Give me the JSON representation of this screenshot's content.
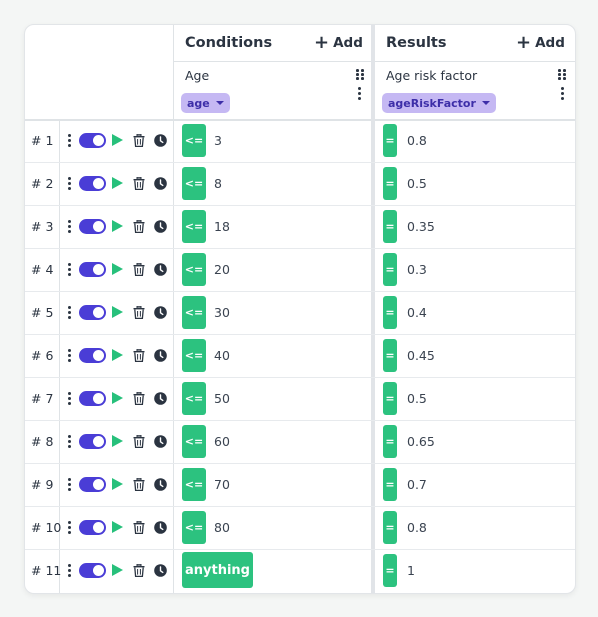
{
  "conditions": {
    "title": "Conditions",
    "add_label": "Add",
    "column": {
      "label": "Age",
      "variable": "age"
    }
  },
  "results": {
    "title": "Results",
    "add_label": "Add",
    "column": {
      "label": "Age risk factor",
      "variable": "ageRiskFactor"
    }
  },
  "colors": {
    "accent": "#4a3dd6",
    "operator": "#2cc27f",
    "play": "#27c07b",
    "variable_pill": "#c5b8f3"
  },
  "rows": [
    {
      "num": "# 1",
      "op": "<=",
      "value": "3",
      "result_op": "=",
      "result": "0.8"
    },
    {
      "num": "# 2",
      "op": "<=",
      "value": "8",
      "result_op": "=",
      "result": "0.5"
    },
    {
      "num": "# 3",
      "op": "<=",
      "value": "18",
      "result_op": "=",
      "result": "0.35"
    },
    {
      "num": "# 4",
      "op": "<=",
      "value": "20",
      "result_op": "=",
      "result": "0.3"
    },
    {
      "num": "# 5",
      "op": "<=",
      "value": "30",
      "result_op": "=",
      "result": "0.4"
    },
    {
      "num": "# 6",
      "op": "<=",
      "value": "40",
      "result_op": "=",
      "result": "0.45"
    },
    {
      "num": "# 7",
      "op": "<=",
      "value": "50",
      "result_op": "=",
      "result": "0.5"
    },
    {
      "num": "# 8",
      "op": "<=",
      "value": "60",
      "result_op": "=",
      "result": "0.65"
    },
    {
      "num": "# 9",
      "op": "<=",
      "value": "70",
      "result_op": "=",
      "result": "0.7"
    },
    {
      "num": "# 10",
      "op": "<=",
      "value": "80",
      "result_op": "=",
      "result": "0.8"
    },
    {
      "num": "# 11",
      "op": "anything",
      "value": "",
      "result_op": "=",
      "result": "1"
    }
  ]
}
